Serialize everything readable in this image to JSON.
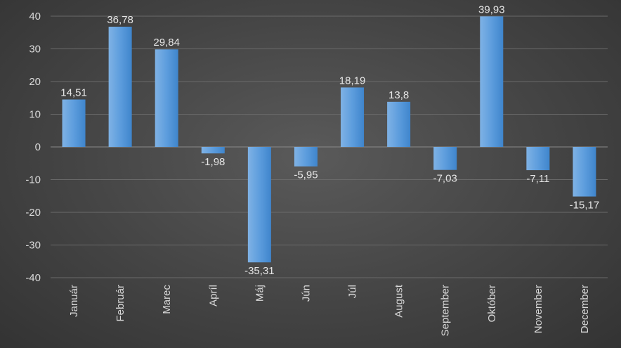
{
  "chart_data": {
    "type": "bar",
    "title": "",
    "xlabel": "",
    "ylabel": "",
    "ylim": [
      -40,
      40
    ],
    "yticks": [
      40,
      30,
      20,
      10,
      0,
      -10,
      -20,
      -30,
      -40
    ],
    "categories": [
      "Január",
      "Február",
      "Marec",
      "Apríl",
      "Máj",
      "Jún",
      "Júl",
      "August",
      "September",
      "Október",
      "November",
      "December"
    ],
    "values": [
      14.51,
      36.78,
      29.84,
      -1.98,
      -35.31,
      -5.95,
      18.19,
      13.8,
      -7.03,
      39.93,
      -7.11,
      -15.17
    ],
    "data_labels": [
      "14,51",
      "36,78",
      "29,84",
      "-1,98",
      "-35,31",
      "-5,95",
      "18,19",
      "13,8",
      "-7,03",
      "39,93",
      "-7,11",
      "-15,17"
    ],
    "grid": true,
    "legend": "none",
    "colors": {
      "bar_light": "#7fb2e5",
      "bar_dark": "#3f85cc",
      "grid": "#6a6a6a",
      "text": "#d9d9d9"
    }
  }
}
